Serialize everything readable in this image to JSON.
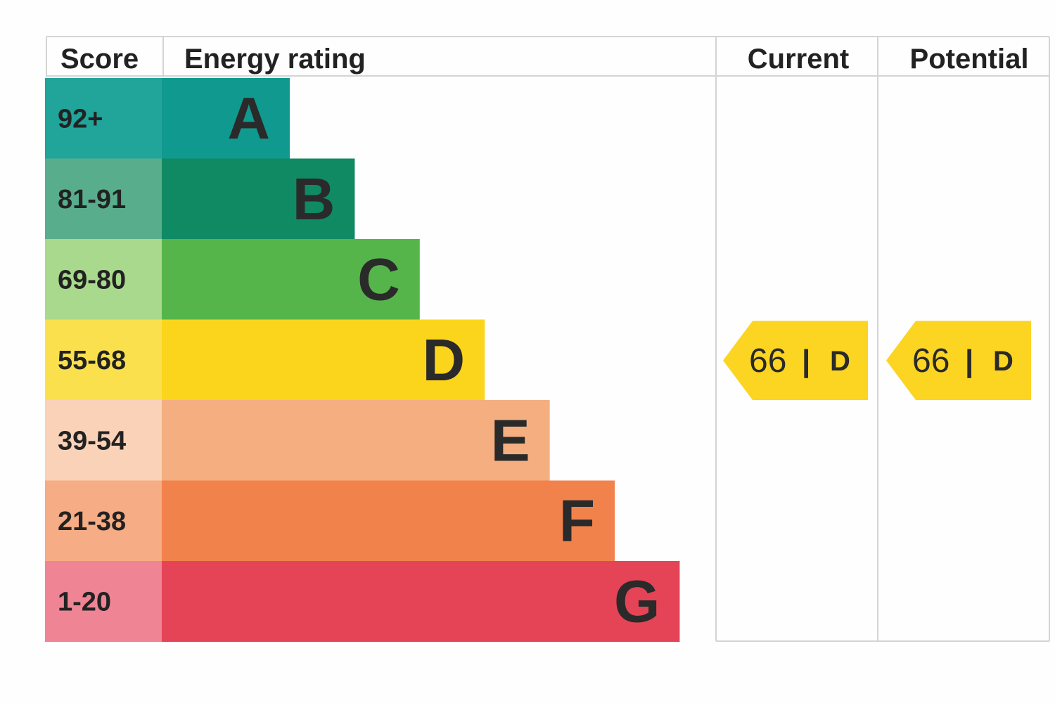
{
  "headers": {
    "score": "Score",
    "energy_rating": "Energy rating",
    "current": "Current",
    "potential": "Potential"
  },
  "chart_data": {
    "type": "bar",
    "categories": [
      "A",
      "B",
      "C",
      "D",
      "E",
      "F",
      "G"
    ],
    "score_ranges": [
      "92+",
      "81-91",
      "69-80",
      "55-68",
      "39-54",
      "21-38",
      "1-20"
    ],
    "bar_colors": [
      "#109a8f",
      "#0f8a62",
      "#56b54a",
      "#fbd51c",
      "#f5ae80",
      "#f2824c",
      "#e54456"
    ],
    "score_cell_colors": [
      "#21a49a",
      "#58ae8c",
      "#a9d98c",
      "#fbe04e",
      "#f9d2b8",
      "#f6ac84",
      "#ee8494"
    ],
    "current": {
      "score": "66",
      "band": "D"
    },
    "potential": {
      "score": "66",
      "band": "D"
    },
    "tag_color": "#fcd422",
    "separator": "|"
  }
}
